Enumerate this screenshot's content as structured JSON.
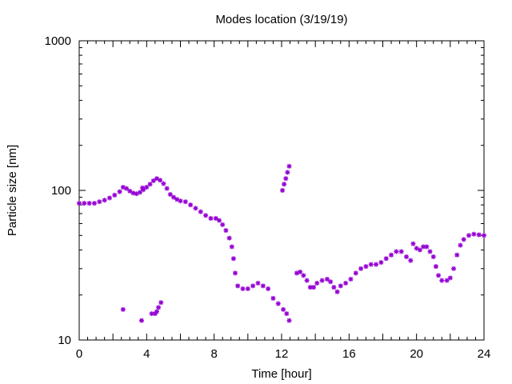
{
  "chart_data": {
    "type": "scatter",
    "title": "Modes location (3/19/19)",
    "xlabel": "Time [hour]",
    "ylabel": "Particle size [nm]",
    "xlim": [
      0,
      24
    ],
    "ylim": [
      10,
      1000
    ],
    "yscale": "log",
    "xticks": [
      0,
      4,
      8,
      12,
      16,
      20,
      24
    ],
    "yticks": [
      10,
      100,
      1000
    ],
    "xtick_labels": [
      "0",
      "4",
      "8",
      "12",
      "16",
      "20",
      "24"
    ],
    "ytick_labels": [
      "10",
      "100",
      "1000"
    ],
    "grid": false,
    "legend": "none",
    "marker": "asterisk",
    "color": "#9400d3",
    "series": [
      {
        "points": [
          [
            0.0,
            82
          ],
          [
            0.3,
            82
          ],
          [
            0.6,
            82
          ],
          [
            0.9,
            82
          ],
          [
            1.2,
            84
          ],
          [
            1.5,
            86
          ],
          [
            1.8,
            89
          ],
          [
            2.1,
            93
          ],
          [
            2.4,
            98
          ],
          [
            2.6,
            105
          ],
          [
            2.8,
            103
          ],
          [
            3.0,
            99
          ],
          [
            3.2,
            96
          ],
          [
            3.4,
            95
          ],
          [
            3.6,
            97
          ],
          [
            3.8,
            101
          ],
          [
            4.0,
            105
          ],
          [
            4.2,
            110
          ],
          [
            4.4,
            116
          ],
          [
            4.6,
            120
          ],
          [
            4.8,
            117
          ],
          [
            5.0,
            111
          ],
          [
            5.2,
            103
          ],
          [
            5.4,
            94
          ],
          [
            5.6,
            90
          ],
          [
            5.8,
            87
          ],
          [
            6.0,
            85
          ],
          [
            6.3,
            84
          ],
          [
            6.6,
            80
          ],
          [
            6.9,
            76
          ],
          [
            7.2,
            72
          ],
          [
            7.5,
            68
          ],
          [
            7.8,
            65
          ],
          [
            8.1,
            65
          ],
          [
            8.3,
            63
          ],
          [
            8.5,
            59
          ],
          [
            8.7,
            54
          ],
          [
            8.9,
            48
          ],
          [
            9.05,
            42
          ],
          [
            9.15,
            35
          ],
          [
            9.25,
            28
          ],
          [
            9.4,
            23
          ],
          [
            9.7,
            22
          ],
          [
            10.0,
            22
          ],
          [
            10.3,
            23
          ],
          [
            10.6,
            24
          ],
          [
            10.9,
            23
          ],
          [
            11.2,
            22
          ],
          [
            11.5,
            19
          ],
          [
            11.8,
            17.5
          ],
          [
            12.1,
            16
          ],
          [
            12.3,
            15
          ],
          [
            12.45,
            13.5
          ],
          [
            12.9,
            28
          ],
          [
            13.1,
            28.5
          ],
          [
            13.3,
            27
          ],
          [
            13.5,
            25
          ],
          [
            13.7,
            22.5
          ],
          [
            13.9,
            22.5
          ],
          [
            14.1,
            24
          ],
          [
            14.4,
            25
          ],
          [
            14.7,
            25.5
          ],
          [
            14.9,
            24.5
          ],
          [
            15.1,
            22.5
          ],
          [
            15.3,
            21
          ],
          [
            15.5,
            23
          ],
          [
            15.8,
            24
          ],
          [
            16.1,
            25.5
          ],
          [
            16.4,
            28
          ],
          [
            16.7,
            30
          ],
          [
            17.0,
            31
          ],
          [
            17.3,
            32
          ],
          [
            17.6,
            32
          ],
          [
            17.9,
            33
          ],
          [
            18.2,
            35
          ],
          [
            18.5,
            37
          ],
          [
            18.8,
            39
          ],
          [
            19.1,
            39
          ],
          [
            19.4,
            36
          ],
          [
            19.65,
            34
          ],
          [
            19.8,
            44
          ],
          [
            20.0,
            41
          ],
          [
            20.2,
            40
          ],
          [
            20.4,
            42
          ],
          [
            20.6,
            42
          ],
          [
            20.8,
            39
          ],
          [
            21.0,
            36
          ],
          [
            21.15,
            31
          ],
          [
            21.3,
            27
          ],
          [
            21.5,
            25
          ],
          [
            21.8,
            25
          ],
          [
            22.0,
            26
          ],
          [
            22.2,
            30
          ],
          [
            22.4,
            37
          ],
          [
            22.6,
            43
          ],
          [
            22.8,
            47
          ],
          [
            23.1,
            50
          ],
          [
            23.4,
            51
          ],
          [
            23.7,
            50.5
          ],
          [
            24.0,
            50
          ]
        ]
      },
      {
        "points": [
          [
            2.6,
            16
          ],
          [
            3.7,
            13.5
          ],
          [
            4.3,
            15
          ],
          [
            4.5,
            15
          ],
          [
            4.6,
            15.5
          ],
          [
            4.7,
            16.5
          ],
          [
            4.85,
            17.8
          ],
          [
            3.75,
            104
          ]
        ]
      },
      {
        "points": [
          [
            12.05,
            100
          ],
          [
            12.15,
            110
          ],
          [
            12.25,
            120
          ],
          [
            12.35,
            132
          ],
          [
            12.45,
            145
          ]
        ]
      }
    ]
  }
}
